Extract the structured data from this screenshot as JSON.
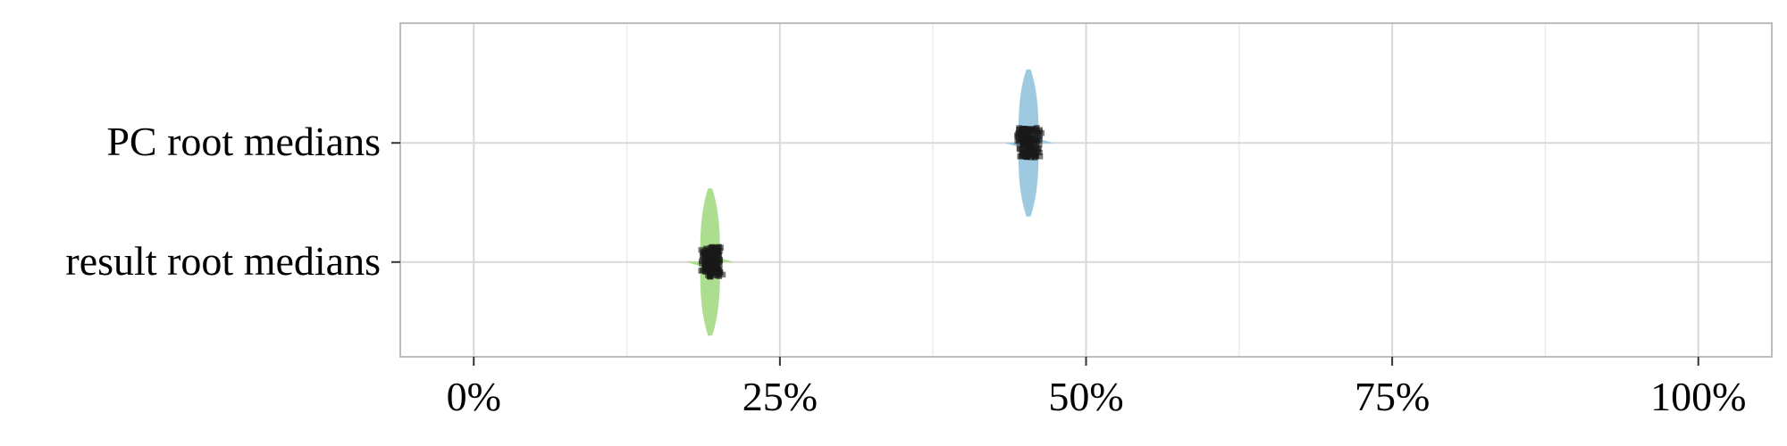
{
  "chart_data": {
    "type": "violin",
    "title": "",
    "xlabel": "",
    "ylabel": "",
    "xlim": [
      -0.06,
      1.06
    ],
    "x_ticks": [
      0,
      0.25,
      0.5,
      0.75,
      1.0
    ],
    "x_tick_labels": [
      "0%",
      "25%",
      "50%",
      "75%",
      "100%"
    ],
    "grid": true,
    "legend": "none",
    "categories": [
      "PC root medians",
      "result root medians"
    ],
    "series": [
      {
        "name": "PC root medians",
        "median": 0.453,
        "min": 0.435,
        "max": 0.472,
        "points_range": [
          0.442,
          0.465
        ],
        "color": "#9ecae1"
      },
      {
        "name": "result root medians",
        "median": 0.193,
        "min": 0.175,
        "max": 0.211,
        "points_range": [
          0.183,
          0.205
        ],
        "color": "#addd8e"
      }
    ],
    "colors": {
      "panel_border": "#bdbdbd",
      "grid_major": "#d9d9d9",
      "grid_minor": "#ebebeb",
      "points": "#1a1a1a"
    }
  }
}
